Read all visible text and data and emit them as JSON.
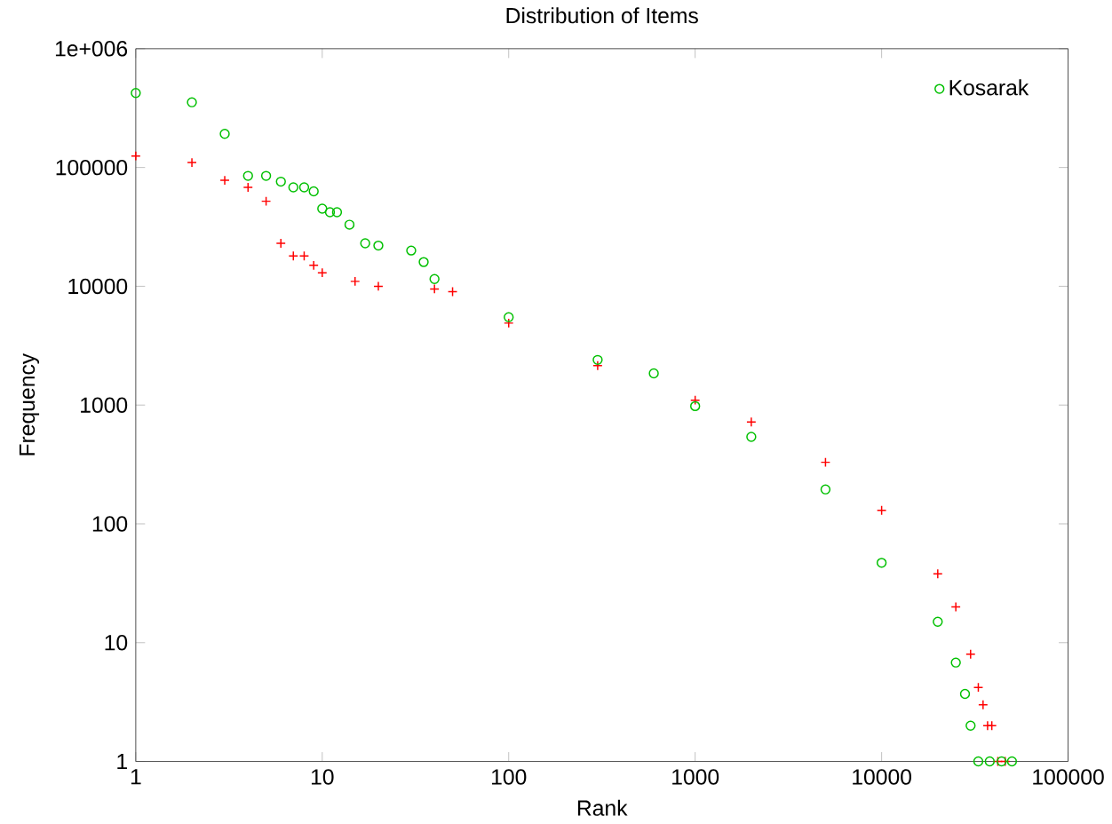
{
  "chart_data": {
    "type": "scatter",
    "title": "Distribution of Items",
    "xlabel": "Rank",
    "ylabel": "Frequency",
    "log": "xy",
    "legend": "top right",
    "xlim": [
      1,
      100000
    ],
    "ylim": [
      1,
      1000000
    ],
    "xticks": [
      1,
      10,
      100,
      1000,
      10000,
      100000
    ],
    "yticks": [
      1,
      10,
      100,
      1000,
      10000,
      100000,
      {
        "value": 1000000,
        "label": "1e+006"
      }
    ],
    "series": [
      {
        "color": "#ff0000",
        "marker": "cross",
        "x": [
          1,
          2,
          3,
          4,
          5,
          6,
          7,
          8,
          9,
          10,
          15,
          20,
          40,
          50,
          100,
          300,
          1000,
          2000,
          5000,
          10000,
          20000,
          25000,
          30000,
          33000,
          35000,
          37000,
          39000,
          42000,
          46000
        ],
        "values": [
          125000,
          110000,
          78000,
          68000,
          52000,
          23000,
          18000,
          18000,
          15000,
          13000,
          11000,
          10000,
          9500,
          9000,
          4900,
          2150,
          1100,
          720,
          330,
          130,
          38,
          20,
          8,
          4.2,
          3,
          2,
          2,
          1,
          1
        ]
      },
      {
        "name": "Kosarak",
        "color": "#00c000",
        "marker": "circle",
        "x": [
          1,
          2,
          3,
          4,
          5,
          6,
          7,
          8,
          9,
          10,
          11,
          12,
          14,
          17,
          20,
          30,
          35,
          40,
          100,
          300,
          600,
          1000,
          2000,
          5000,
          10000,
          20000,
          25000,
          28000,
          30000,
          33000,
          38000,
          44000,
          50000
        ],
        "values": [
          424000,
          354000,
          192000,
          85000,
          85000,
          76000,
          68000,
          68000,
          63000,
          45000,
          42000,
          42000,
          33000,
          23000,
          22000,
          20000,
          16000,
          11500,
          5500,
          2400,
          1850,
          980,
          540,
          195,
          47,
          15,
          6.8,
          3.7,
          2,
          1,
          1,
          1,
          1
        ]
      }
    ]
  }
}
